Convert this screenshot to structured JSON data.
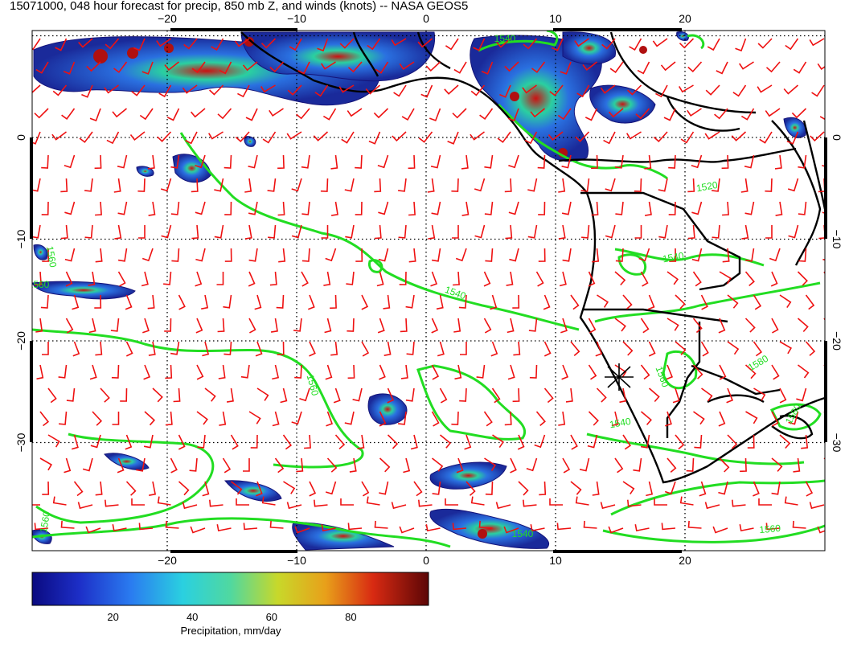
{
  "title": "15071000, 048 hour forecast for precip, 850 mb Z, and winds (knots) -- NASA GEOS5",
  "map": {
    "lon_range": [
      -30,
      30
    ],
    "lat_range": [
      -40,
      10
    ],
    "lon_ticks": [
      {
        "value": -20,
        "label": "−20"
      },
      {
        "value": -10,
        "label": "−10"
      },
      {
        "value": 0,
        "label": "0"
      },
      {
        "value": 10,
        "label": "10"
      },
      {
        "value": 20,
        "label": "20"
      }
    ],
    "lat_ticks": [
      {
        "value": 0,
        "label": "0"
      },
      {
        "value": -10,
        "label": "−10"
      },
      {
        "value": -20,
        "label": "−20"
      },
      {
        "value": -30,
        "label": "−30"
      }
    ],
    "grid": "dotted",
    "contour_color": "#22dd22",
    "wind_barb_color": "#ee1111",
    "coastline_color": "#000000",
    "contour_labels": [
      "1540",
      "1520",
      "1540",
      "1540",
      "1560",
      "1560",
      "1580",
      "1540",
      "1580",
      "1560",
      "1560",
      "1560",
      "1540",
      "1560"
    ]
  },
  "colorbar": {
    "ticks": [
      "20",
      "40",
      "60",
      "80"
    ],
    "label": "Precipitation, mm/day",
    "colors": [
      "#1a1a8c",
      "#1f3fd6",
      "#2aa0ff",
      "#2ad8c8",
      "#c8d82a",
      "#e88a1a",
      "#cc1111",
      "#5c0a0a"
    ]
  }
}
